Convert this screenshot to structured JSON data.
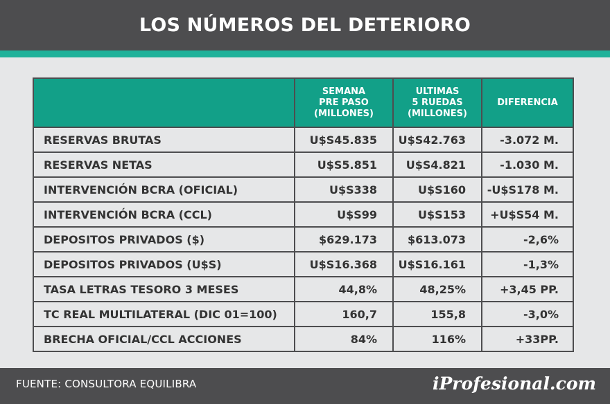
{
  "title": "LOS NÚMEROS DEL DETERIORO",
  "colors": {
    "header_bg": "#4d4d4f",
    "accent": "#1fb29a",
    "table_header": "#12a088",
    "body_bg": "#e6e7e8"
  },
  "table": {
    "headers": [
      "",
      "SEMANA\nPRE PASO\n(MILLONES)",
      "ULTIMAS\n5 RUEDAS\n(MILLONES)",
      "DIFERENCIA"
    ],
    "rows": [
      [
        "RESERVAS BRUTAS",
        "U$S45.835",
        "U$S42.763",
        "-3.072 M."
      ],
      [
        "RESERVAS NETAS",
        "U$S5.851",
        "U$S4.821",
        "-1.030 M."
      ],
      [
        "INTERVENCIÓN BCRA (OFICIAL)",
        "U$S338",
        "U$S160",
        "-U$S178 M."
      ],
      [
        "INTERVENCIÓN BCRA (CCL)",
        "U$S99",
        "U$S153",
        "+U$S54 M."
      ],
      [
        "DEPOSITOS PRIVADOS ($)",
        "$629.173",
        "$613.073",
        "-2,6%"
      ],
      [
        "DEPOSITOS PRIVADOS (U$S)",
        "U$S16.368",
        "U$S16.161",
        "-1,3%"
      ],
      [
        "TASA LETRAS TESORO 3 MESES",
        "44,8%",
        "48,25%",
        "+3,45 PP."
      ],
      [
        "TC REAL MULTILATERAL (DIC 01=100)",
        "160,7",
        "155,8",
        "-3,0%"
      ],
      [
        "BRECHA OFICIAL/CCL ACCIONES",
        "84%",
        "116%",
        "+33PP."
      ]
    ]
  },
  "footer": {
    "source": "FUENTE: CONSULTORA EQUILIBRA",
    "brand": "iProfesional.com"
  }
}
